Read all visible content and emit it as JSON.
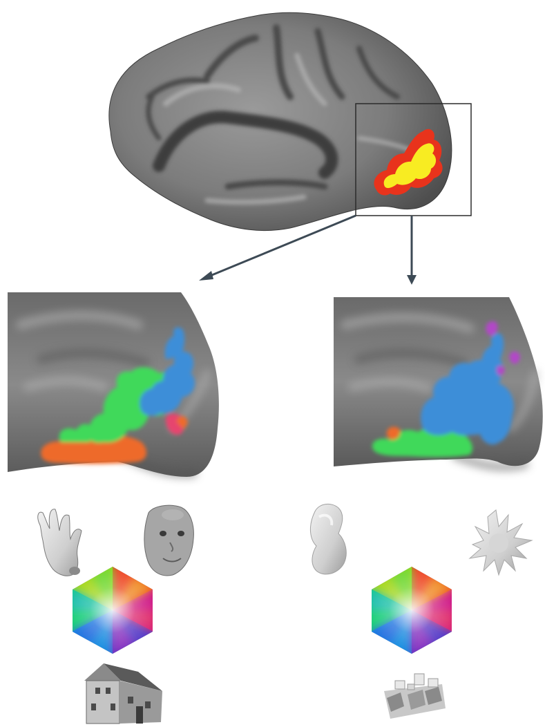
{
  "figure": {
    "brain": {
      "name": "inflated-cortex",
      "activation_colors": [
        "#e8331c",
        "#f8ec22"
      ]
    },
    "zoom_box": {
      "stroke": "#2b2b2b"
    },
    "arrows": {
      "color": "#3d4a55"
    },
    "left_panel": {
      "name": "animate-map",
      "color_scale": "hexagonal-color-wheel",
      "corner_icons": {
        "top_left": "hand-icon",
        "top_right": "baby-face-icon",
        "bottom": "house-icon"
      },
      "dominant_colors": [
        "#3fd95a",
        "#3e8ed8",
        "#ee6a2a",
        "#e6456e"
      ]
    },
    "right_panel": {
      "name": "inanimate-shape-map",
      "color_scale": "hexagonal-color-wheel",
      "corner_icons": {
        "top_left": "smooth-blob-icon",
        "top_right": "spiky-blob-icon",
        "bottom": "cube-cluster-icon"
      },
      "dominant_colors": [
        "#3e8ed8",
        "#3fd95a",
        "#b247c8",
        "#ee6a2a"
      ]
    },
    "hexagon_colors": {
      "top": "#a8d820",
      "upper_right": "#ee4a2a",
      "lower_right": "#d0208a",
      "bottom": "#5840c8",
      "lower_left": "#1a8ee0",
      "upper_left": "#20d07a"
    }
  }
}
